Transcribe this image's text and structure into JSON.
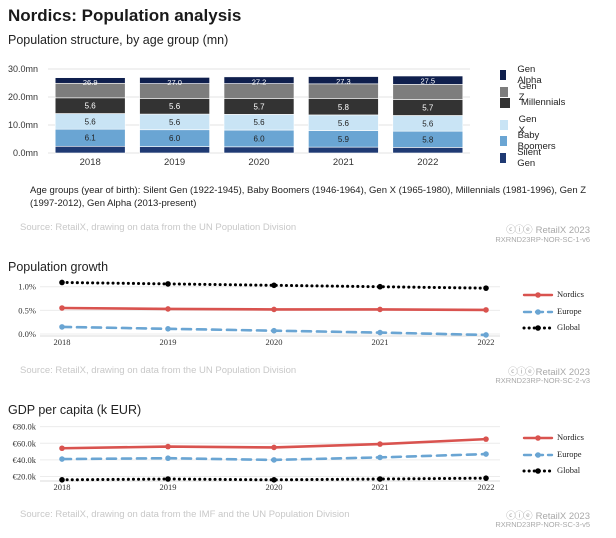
{
  "header": {
    "title": "Nordics: Population analysis"
  },
  "chart1": {
    "subtitle": "Population structure, by age group (mn)",
    "note": "Age groups (year of birth): Silent Gen (1922-1945), Baby Boomers (1946-1964), Gen X (1965-1980), Millennials (1981-1996), Gen Z (1997-2012), Gen Alpha (2013-present)",
    "source": "Source: RetailX, drawing on data from the UN Population Division",
    "brand": "RetailX 2023",
    "code": "RXRND23RP-NOR-SC-1-v6"
  },
  "chart2": {
    "title": "Population growth",
    "source": "Source: RetailX, drawing on data from the UN Population Division",
    "brand": "RetailX 2023",
    "code": "RXRND23RP-NOR-SC-2-v3"
  },
  "chart3": {
    "title": "GDP per capita (k EUR)",
    "source": "Source: RetailX, drawing on data from the IMF and the UN Population Division",
    "brand": "RetailX 2023",
    "code": "RXRND23RP-NOR-SC-3-v5"
  },
  "chart_data": [
    {
      "type": "bar",
      "stacked": true,
      "title": "Population structure, by age group (mn)",
      "categories": [
        "2018",
        "2019",
        "2020",
        "2021",
        "2022"
      ],
      "ylim": [
        0,
        30
      ],
      "yticks": [
        "0.0mn",
        "10.0mn",
        "20.0mn",
        "30.0mn"
      ],
      "totals": [
        26.9,
        27.0,
        27.2,
        27.3,
        27.5
      ],
      "series": [
        {
          "name": "Silent Gen",
          "color": "#1f3a73",
          "values": [
            2.4,
            2.3,
            2.2,
            2.1,
            2.0
          ]
        },
        {
          "name": "Baby Boomers",
          "color": "#6aa5d3",
          "values": [
            6.1,
            6.0,
            6.0,
            5.9,
            5.8
          ]
        },
        {
          "name": "Gen X",
          "color": "#c9e4f5",
          "values": [
            5.6,
            5.6,
            5.6,
            5.6,
            5.6
          ]
        },
        {
          "name": "Millennials",
          "color": "#333333",
          "values": [
            5.6,
            5.6,
            5.7,
            5.8,
            5.7
          ]
        },
        {
          "name": "Gen Z",
          "color": "#7d7d7d",
          "values": [
            5.2,
            5.3,
            5.3,
            5.3,
            5.4
          ]
        },
        {
          "name": "Gen Alpha",
          "color": "#0f1f4d",
          "values": [
            2.0,
            2.2,
            2.4,
            2.6,
            3.0
          ]
        }
      ],
      "labeled_series": [
        "Baby Boomers",
        "Gen X",
        "Millennials"
      ],
      "legend_order": [
        "Gen Alpha",
        "Gen Z",
        "Millennials",
        "Gen X",
        "Baby Boomers",
        "Silent Gen"
      ],
      "legend": "right"
    },
    {
      "type": "line",
      "title": "Population growth",
      "x": [
        "2018",
        "2019",
        "2020",
        "2021",
        "2022"
      ],
      "ylim": [
        0,
        1.1
      ],
      "yticks": [
        {
          "v": 0,
          "label": "0.0%"
        },
        {
          "v": 0.5,
          "label": "0.5%"
        },
        {
          "v": 1.0,
          "label": "1.0%"
        }
      ],
      "series": [
        {
          "name": "Nordics",
          "color": "#d9534f",
          "style": "solid",
          "values": [
            0.55,
            0.53,
            0.52,
            0.52,
            0.51
          ]
        },
        {
          "name": "Europe",
          "color": "#6aa5d3",
          "style": "dashed",
          "values": [
            0.15,
            0.11,
            0.07,
            0.03,
            -0.02
          ]
        },
        {
          "name": "Global",
          "color": "#000000",
          "style": "dotted",
          "values": [
            1.09,
            1.06,
            1.03,
            1.0,
            0.97
          ]
        }
      ],
      "legend": "right"
    },
    {
      "type": "line",
      "title": "GDP per capita (k EUR)",
      "x": [
        "2018",
        "2019",
        "2020",
        "2021",
        "2022"
      ],
      "ylim": [
        17,
        82
      ],
      "yticks": [
        {
          "v": 20,
          "label": "€20.0k"
        },
        {
          "v": 40,
          "label": "€40.0k"
        },
        {
          "v": 60,
          "label": "€60.0k"
        },
        {
          "v": 80,
          "label": "€80.0k"
        }
      ],
      "series": [
        {
          "name": "Nordics",
          "color": "#d9534f",
          "style": "solid",
          "values": [
            54,
            56,
            55,
            59,
            65
          ]
        },
        {
          "name": "Europe",
          "color": "#6aa5d3",
          "style": "dashed",
          "values": [
            41,
            42,
            40,
            43,
            47
          ]
        },
        {
          "name": "Global",
          "color": "#000000",
          "style": "dotted",
          "values": [
            16,
            17,
            16,
            17,
            18
          ]
        }
      ],
      "legend": "right"
    }
  ]
}
